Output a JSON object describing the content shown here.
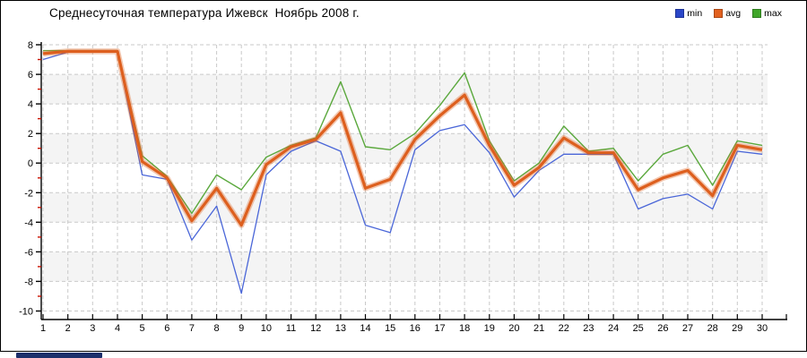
{
  "header": {
    "title": "Среднесуточная температура Ижевск  Ноябрь 2008 г."
  },
  "legend": {
    "position": "top-right",
    "items": [
      {
        "label": "min",
        "color": "#2a46c8"
      },
      {
        "label": "avg",
        "color": "#e2611f"
      },
      {
        "label": "max",
        "color": "#3fa628"
      }
    ]
  },
  "chart_data": {
    "type": "line",
    "title": "Среднесуточная температура Ижевск  Ноябрь 2008 г.",
    "xlabel": "",
    "ylabel": "",
    "x": [
      1,
      2,
      3,
      4,
      5,
      6,
      7,
      8,
      9,
      10,
      11,
      12,
      13,
      14,
      15,
      16,
      17,
      18,
      19,
      20,
      21,
      22,
      23,
      24,
      25,
      26,
      27,
      28,
      29,
      30
    ],
    "ylim": [
      -10,
      8
    ],
    "ytick_step": 2,
    "grid": "dashed",
    "grid_color": "#c9c9c9",
    "band_colors": [
      "#ffffff",
      "#f4f4f4"
    ],
    "axis_color": "#000000",
    "minor_tick_color": "#cc1100",
    "legend_position": "top-right",
    "series": [
      {
        "name": "min",
        "color": "#4a66d8",
        "values": [
          7.0,
          7.5,
          7.5,
          7.5,
          -0.8,
          -1.1,
          -5.2,
          -2.9,
          -8.8,
          -0.8,
          0.8,
          1.5,
          0.8,
          -4.2,
          -4.7,
          0.9,
          2.2,
          2.6,
          0.7,
          -2.3,
          -0.5,
          0.6,
          0.6,
          0.6,
          -3.1,
          -2.4,
          -2.1,
          -3.1,
          0.8,
          0.6
        ]
      },
      {
        "name": "avg",
        "color": "#dd5f1e",
        "values": [
          7.4,
          7.55,
          7.55,
          7.55,
          0.1,
          -1.0,
          -3.9,
          -1.7,
          -4.2,
          -0.1,
          1.1,
          1.6,
          3.4,
          -1.7,
          -1.1,
          1.6,
          3.2,
          4.6,
          1.2,
          -1.5,
          -0.3,
          1.7,
          0.7,
          0.7,
          -1.8,
          -1.0,
          -0.5,
          -2.2,
          1.2,
          0.9
        ]
      },
      {
        "name": "max",
        "color": "#5aa83c",
        "values": [
          7.6,
          7.6,
          7.6,
          7.6,
          0.5,
          -0.9,
          -3.4,
          -0.8,
          -1.8,
          0.4,
          1.2,
          1.7,
          5.5,
          1.1,
          0.9,
          2.0,
          3.9,
          6.1,
          1.5,
          -1.2,
          0.0,
          2.5,
          0.8,
          1.0,
          -1.2,
          0.6,
          1.2,
          -1.5,
          1.5,
          1.2
        ]
      }
    ]
  }
}
